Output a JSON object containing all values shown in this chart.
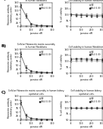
{
  "background_color": "#ffffff",
  "panels": [
    {
      "label": "A)",
      "left_title": "Neurofil-plasma Fibronectin matrix assembly\nin human Fibroblasts",
      "right_title": "Cell viability in human Fibroblasts",
      "left": {
        "xlabel": "jasmine nM",
        "ylabel": "Fibronectin antibody\n(arbitrary units)",
        "xlim": [
          0,
          300
        ],
        "ylim": [
          0,
          150
        ],
        "yticks": [
          0,
          25,
          50,
          75,
          100,
          125,
          150
        ],
        "xticks": [
          0,
          100,
          200,
          300
        ],
        "series": [
          {
            "label": "IgG",
            "x": [
              0,
              50,
              100,
              150,
              200,
              250,
              300
            ],
            "y": [
              6,
              5,
              5,
              4,
              4,
              4,
              4
            ],
            "color": "#aaaaaa",
            "marker": "s",
            "linestyle": "-",
            "yerr": [
              1,
              1,
              1,
              1,
              1,
              1,
              1
            ]
          },
          {
            "label": "FBL4 (1:30)",
            "x": [
              0,
              50,
              100,
              150,
              200,
              250,
              300
            ],
            "y": [
              130,
              68,
              18,
              8,
              6,
              5,
              4
            ],
            "color": "#444444",
            "marker": "s",
            "linestyle": "-",
            "yerr": [
              10,
              12,
              4,
              2,
              1,
              1,
              1
            ]
          }
        ]
      },
      "right": {
        "xlabel": "jasmine nM",
        "ylabel": "% cell viability",
        "xlim": [
          0,
          300
        ],
        "ylim": [
          50,
          150
        ],
        "yticks": [
          50,
          75,
          100,
          125,
          150
        ],
        "xticks": [
          0,
          100,
          200,
          300
        ],
        "series": [
          {
            "label": "IgG",
            "x": [
              0,
              50,
              100,
              150,
              200,
              250,
              300
            ],
            "y": [
              100,
              100,
              100,
              100,
              100,
              100,
              100
            ],
            "color": "#aaaaaa",
            "marker": "s",
            "linestyle": "-",
            "yerr": [
              3,
              3,
              3,
              3,
              3,
              3,
              3
            ]
          },
          {
            "label": "FBL4 (1:30)",
            "x": [
              0,
              50,
              100,
              150,
              200,
              250,
              300
            ],
            "y": [
              100,
              98,
              97,
              96,
              95,
              94,
              95
            ],
            "color": "#444444",
            "marker": "s",
            "linestyle": "-",
            "yerr": [
              5,
              5,
              8,
              5,
              5,
              5,
              5
            ]
          }
        ]
      }
    },
    {
      "label": "B)",
      "left_title": "Cellular Fibronectin matrix assembly\nin human Fibroblasts",
      "right_title": "Cell viability in human Fibroblasts",
      "left": {
        "xlabel": "jasmine nM",
        "ylabel": "Fibronectin antibody\n(arbitrary units)",
        "xlim": [
          0,
          300
        ],
        "ylim": [
          0,
          150
        ],
        "yticks": [
          0,
          25,
          50,
          75,
          100,
          125,
          150
        ],
        "xticks": [
          0,
          100,
          200,
          300
        ],
        "series": [
          {
            "label": "IgG",
            "x": [
              0,
              50,
              100,
              150,
              200,
              250,
              300
            ],
            "y": [
              6,
              5,
              5,
              4,
              4,
              4,
              4
            ],
            "color": "#aaaaaa",
            "marker": "s",
            "linestyle": "-",
            "yerr": [
              1,
              1,
              1,
              1,
              1,
              1,
              1
            ]
          },
          {
            "label": "FBL4 (1:30)",
            "x": [
              0,
              50,
              100,
              150,
              200,
              250,
              300
            ],
            "y": [
              120,
              35,
              14,
              9,
              7,
              5,
              5
            ],
            "color": "#444444",
            "marker": "s",
            "linestyle": "-",
            "yerr": [
              15,
              15,
              4,
              2,
              1,
              1,
              1
            ]
          }
        ]
      },
      "right": {
        "xlabel": "jasmine nM",
        "ylabel": "% cell viability",
        "xlim": [
          0,
          300
        ],
        "ylim": [
          50,
          150
        ],
        "yticks": [
          50,
          75,
          100,
          125,
          150
        ],
        "xticks": [
          0,
          100,
          200,
          300
        ],
        "series": [
          {
            "label": "IgG",
            "x": [
              0,
              50,
              100,
              150,
              200,
              250,
              300
            ],
            "y": [
              100,
              101,
              102,
              103,
              102,
              101,
              100
            ],
            "color": "#aaaaaa",
            "marker": "s",
            "linestyle": "-",
            "yerr": [
              3,
              3,
              3,
              3,
              3,
              3,
              3
            ]
          },
          {
            "label": "FBL4 (1:30)",
            "x": [
              0,
              50,
              100,
              150,
              200,
              250,
              300
            ],
            "y": [
              108,
              110,
              110,
              109,
              108,
              107,
              106
            ],
            "color": "#444444",
            "marker": "s",
            "linestyle": "-",
            "yerr": [
              5,
              5,
              5,
              5,
              5,
              5,
              5
            ]
          }
        ]
      }
    },
    {
      "label": "C)",
      "left_title": "Cellular Fibronectin matrix assembly in human kidney\nepithelial cells",
      "right_title": "Cell viability in human kidney\nepithelial cells",
      "left": {
        "xlabel": "jasmine nM",
        "ylabel": "Fibronectin antibody\n(arbitrary units)",
        "xlim": [
          0,
          300
        ],
        "ylim": [
          0,
          150
        ],
        "yticks": [
          0,
          25,
          50,
          75,
          100,
          125,
          150
        ],
        "xticks": [
          0,
          100,
          200,
          300
        ],
        "series": [
          {
            "label": "IgG",
            "x": [
              0,
              50,
              100,
              150,
              200,
              250,
              300
            ],
            "y": [
              6,
              5,
              5,
              4,
              4,
              4,
              4
            ],
            "color": "#aaaaaa",
            "marker": "s",
            "linestyle": "-",
            "yerr": [
              1,
              1,
              1,
              1,
              1,
              1,
              1
            ]
          },
          {
            "label": "FBL4 (1:30)",
            "x": [
              0,
              50,
              100,
              150,
              200,
              250,
              300
            ],
            "y": [
              110,
              28,
              10,
              7,
              5,
              4,
              4
            ],
            "color": "#444444",
            "marker": "s",
            "linestyle": "-",
            "yerr": [
              12,
              10,
              3,
              2,
              1,
              1,
              1
            ]
          }
        ]
      },
      "right": {
        "xlabel": "jasmine nM",
        "ylabel": "% cell viability",
        "xlim": [
          0,
          300
        ],
        "ylim": [
          50,
          150
        ],
        "yticks": [
          50,
          75,
          100,
          125,
          150
        ],
        "xticks": [
          0,
          100,
          200,
          300
        ],
        "series": [
          {
            "label": "IgG",
            "x": [
              0,
              50,
              100,
              150,
              200,
              250,
              300
            ],
            "y": [
              100,
              100,
              100,
              100,
              100,
              100,
              100
            ],
            "color": "#aaaaaa",
            "marker": "s",
            "linestyle": "-",
            "yerr": [
              3,
              3,
              3,
              3,
              3,
              3,
              3
            ]
          },
          {
            "label": "FBL4 (1:30)",
            "x": [
              0,
              50,
              100,
              150,
              200,
              250,
              300
            ],
            "y": [
              100,
              100,
              100,
              100,
              100,
              100,
              100
            ],
            "color": "#444444",
            "marker": "s",
            "linestyle": "-",
            "yerr": [
              3,
              3,
              3,
              3,
              3,
              3,
              3
            ]
          }
        ]
      }
    }
  ]
}
